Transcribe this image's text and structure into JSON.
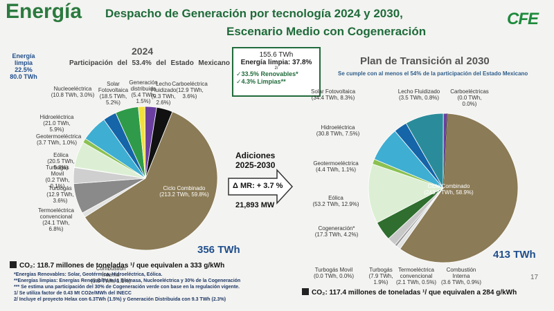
{
  "header": {
    "title": "Energía",
    "subtitle_1": "Despacho de Generación por tecnología  2024 y 2030,",
    "subtitle_2": "Escenario Medio con Cogeneración",
    "logo": "CFE"
  },
  "left_summary": {
    "label": "Energía limpia",
    "share": "22.5%",
    "energy": "80.0 TWh",
    "participation": "Participación del 53.4% del Estado Mexicano"
  },
  "center_box": {
    "energy": "155.6 TWh",
    "clean": "Energía limpia: 37.8%",
    "note": "2/",
    "renewables": "✓33.5% Renovables*",
    "clean_other": "✓4.3% Limpias**"
  },
  "additions": {
    "title": "Adiciones 2025-2030",
    "margin": "Δ MR: + 3.7 %",
    "capacity": "21,893 MW"
  },
  "emissions_2024": "CO₂: 118.7 millones de toneladas ¹/ que equivalen a 333 g/kWh",
  "notes": [
    "*Energías Renovables: Solar, Geotérmica, Hidroeléctrica, Eólica.",
    "**Energías limpias: Energías Renovables más Biomasa, Nucleoeléctrica y 30% de la Cogeneración",
    "*** Se estima una participación del 30% de Cogeneración verde con base en la regulación vigente.",
    "1/ Se utiliza factor de 0.43 Mt CO2e/MWh  del INECC",
    "2/ Incluye el proyecto Helax con 6.3TWh (1.5%) y Generación Distribuida con 9.3 TWh (2.3%)"
  ],
  "emissions_2030": "CO₂: 117.4 millones de toneladas ¹/ que equivalen a 284 g/kWh",
  "page_number": "17",
  "chart_data": [
    {
      "type": "pie",
      "title": "2024",
      "total": "356 TWh",
      "categories": [
        "Ciclo Combinado",
        "Combustión Interna",
        "Termoeléctrica convencional",
        "Turbogás",
        "Turbogás Movil",
        "Eólica",
        "Geotermoeléctrica",
        "Hidroeléctrica",
        "Nucleoeléctrica",
        "Solar Fotovoltaica",
        "Generación distribuida",
        "Lecho Fluidizado",
        "Carboeléctrica"
      ],
      "values": [
        59.8,
        1.1,
        6.8,
        3.6,
        0.1,
        5.8,
        1.0,
        5.9,
        3.0,
        5.2,
        1.5,
        2.6,
        3.6
      ],
      "value_labels": [
        "(213.2 TWh, 59.8%)",
        "(3.8 TWh, 1.1%)",
        "(24.1 TWh, 6.8%)",
        "(12.9 TWh, 3.6%)",
        "(0.2 TWh, 0.1%)",
        "(20.5 TWh, 5.8%)",
        "(3.7 TWh, 1.0%)",
        "(21.0 TWh, 5.9%)",
        "(10.8 TWh, 3.0%)",
        "(18.5 TWh, 5.2%)",
        "(5.4 TWh, 1.5%)",
        "(9.3 TWh, 2.6%)",
        "(12.9 TWh, 3.6%)"
      ],
      "colors": [
        "#8b7b56",
        "#e3e3e3",
        "#8a8a8a",
        "#cfcfcf",
        "#f2f2f2",
        "#dcefd4",
        "#8cc152",
        "#3eaed2",
        "#1565a8",
        "#2f9b4a",
        "#f2e03a",
        "#6a3fa0",
        "#111111"
      ]
    },
    {
      "type": "pie",
      "title": "Plan de Transición al 2030",
      "subtitle": "Se cumple con al menos el 54% de la participación del Estado Mexicano",
      "total": "413 TWh",
      "categories": [
        "Ciclo Combinado",
        "Combustión Interna",
        "Termoeléctrica convencional",
        "Turbogás",
        "Turbogás Movil",
        "Cogeneración*",
        "Eólica",
        "Geotermoeléctrica",
        "Hidroeléctrica",
        null,
        "Solar Fotovoltaica",
        "Lecho Fluidizado",
        "Carboeléctricas"
      ],
      "values": [
        58.9,
        0.9,
        0.5,
        1.9,
        0.0,
        4.2,
        12.9,
        1.1,
        7.5,
        2.9,
        8.3,
        0.8,
        0.0
      ],
      "value_labels": [
        "(243.4 TWh, 58.9%)",
        "(3.6 TWh, 0.9%)",
        "(2.1 TWh, 0.5%)",
        "(7.9 TWh, 1.9%)",
        "(0.0 TWh, 0.0%)",
        "(17.3 TWh, 4.2%)",
        "(53.2 TWh, 12.9%)",
        "(4.4 TWh, 1.1%)",
        "(30.8 TWh, 7.5%)",
        null,
        "(34.4 TWh, 8.3%)",
        "(3.5 TWh, 0.8%)",
        "(0.0 TWh, 0.0%)"
      ],
      "colors": [
        "#8b7b56",
        "#e3e3e3",
        "#9a9a9a",
        "#c8c8c8",
        "#f2f2f2",
        "#2f6e2e",
        "#dcefd4",
        "#8cc152",
        "#3eaed2",
        "#1565a8",
        "#2a8c9a",
        "#6a3fa0",
        "#111111"
      ]
    }
  ]
}
